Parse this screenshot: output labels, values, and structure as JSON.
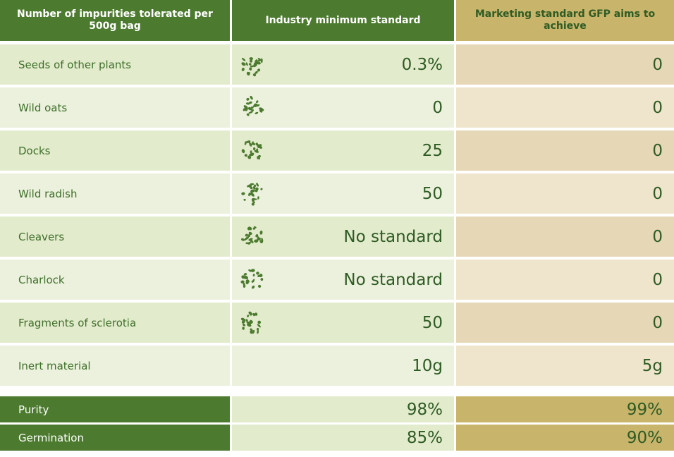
{
  "header": {
    "columns": [
      "Number of impurities tolerated per 500g bag",
      "Industry minimum standard",
      "Marketing standard GFP aims to achieve"
    ]
  },
  "rows": [
    {
      "label": "Seeds of other plants",
      "industry": "0.3%",
      "gfp": "0"
    },
    {
      "label": "Wild oats",
      "industry": "0",
      "gfp": "0"
    },
    {
      "label": "Docks",
      "industry": "25",
      "gfp": "0"
    },
    {
      "label": "Wild radish",
      "industry": "50",
      "gfp": "0"
    },
    {
      "label": "Cleavers",
      "industry": "No standard",
      "gfp": "0"
    },
    {
      "label": "Charlock",
      "industry": "No standard",
      "gfp": "0"
    },
    {
      "label": "Fragments of sclerotia",
      "industry": "50",
      "gfp": "0"
    },
    {
      "label": "Inert material",
      "industry": "10g",
      "gfp": "5g"
    }
  ],
  "summary": [
    {
      "label": "Purity",
      "industry": "98%",
      "gfp": "99%"
    },
    {
      "label": "Germination",
      "industry": "85%",
      "gfp": "90%"
    }
  ]
}
